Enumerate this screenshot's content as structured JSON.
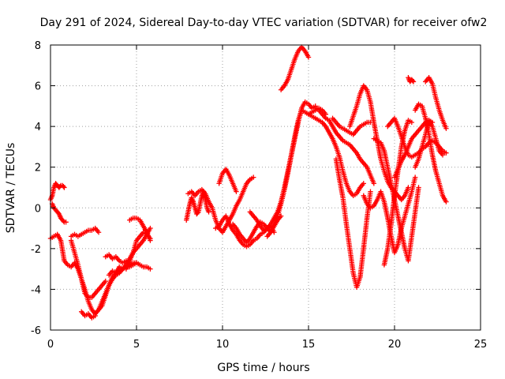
{
  "chart_data": {
    "type": "scatter",
    "title": "Day 291 of 2024, Sidereal Day-to-day VTEC variation (SDTVAR) for receiver ofw2",
    "xlabel": "GPS time / hours",
    "ylabel": "SDTVAR / TECUs",
    "xlim": [
      0,
      25
    ],
    "ylim": [
      -6,
      8
    ],
    "x_ticks": [
      "0",
      "5",
      "10",
      "15",
      "20",
      "25"
    ],
    "y_ticks": [
      "-6",
      "-4",
      "-2",
      "0",
      "2",
      "4",
      "6",
      "8"
    ],
    "grid": true,
    "legend": "none",
    "marker": "plus",
    "color": "#ff0000",
    "series": [
      {
        "x": [
          0.0,
          0.1,
          0.2,
          0.3,
          0.4,
          0.5,
          0.6,
          0.7,
          0.8
        ],
        "y": [
          0.4,
          0.6,
          1.0,
          1.2,
          1.1,
          1.0,
          1.1,
          1.1,
          1.0
        ]
      },
      {
        "x": [
          0.1,
          0.2,
          0.3,
          0.4,
          0.5,
          0.6,
          0.7,
          0.8,
          0.9
        ],
        "y": [
          0.2,
          0.0,
          -0.1,
          -0.2,
          -0.3,
          -0.5,
          -0.6,
          -0.7,
          -0.7
        ]
      },
      {
        "x": [
          0.0,
          0.2,
          0.4,
          0.6,
          0.8,
          1.0,
          1.2,
          1.4,
          1.6,
          1.8,
          2.0,
          2.2,
          2.4,
          2.6,
          2.8,
          3.0,
          3.2
        ],
        "y": [
          -1.5,
          -1.4,
          -1.3,
          -1.6,
          -2.6,
          -2.8,
          -2.9,
          -2.7,
          -3.0,
          -3.5,
          -4.2,
          -4.4,
          -4.4,
          -4.2,
          -4.0,
          -3.8,
          -3.6
        ]
      },
      {
        "x": [
          1.2,
          1.4,
          1.6,
          1.8,
          2.0,
          2.2,
          2.4,
          2.6,
          2.8
        ],
        "y": [
          -1.4,
          -1.3,
          -1.4,
          -1.3,
          -1.2,
          -1.1,
          -1.1,
          -1.0,
          -1.2
        ]
      },
      {
        "x": [
          1.2,
          1.4,
          1.6,
          1.8,
          2.0,
          2.2,
          2.4,
          2.6,
          2.8,
          3.0,
          3.2,
          3.4,
          3.6,
          3.8,
          4.0,
          4.2,
          4.4,
          4.6,
          4.8,
          5.0,
          5.2,
          5.4,
          5.6,
          5.8
        ],
        "y": [
          -1.6,
          -2.2,
          -2.8,
          -3.5,
          -4.0,
          -4.6,
          -5.0,
          -5.2,
          -5.0,
          -4.8,
          -4.3,
          -3.8,
          -3.5,
          -3.3,
          -3.2,
          -3.0,
          -2.9,
          -2.9,
          -2.8,
          -2.7,
          -2.8,
          -2.9,
          -2.9,
          -3.0
        ]
      },
      {
        "x": [
          1.8,
          2.0,
          2.2,
          2.4,
          2.6
        ],
        "y": [
          -5.1,
          -5.3,
          -5.2,
          -5.4,
          -5.3
        ]
      },
      {
        "x": [
          2.6,
          2.8,
          3.0,
          3.2,
          3.4,
          3.6,
          3.8,
          4.0,
          4.2,
          4.4,
          4.6,
          4.8,
          5.0
        ],
        "y": [
          -5.2,
          -5.0,
          -4.6,
          -4.2,
          -3.8,
          -3.4,
          -3.2,
          -3.1,
          -3.0,
          -2.9,
          -2.8,
          -2.7,
          -2.7
        ]
      },
      {
        "x": [
          3.2,
          3.4,
          3.6,
          3.8,
          4.0,
          4.2,
          4.4,
          4.6
        ],
        "y": [
          -2.4,
          -2.3,
          -2.5,
          -2.4,
          -2.6,
          -2.7,
          -2.6,
          -2.8
        ]
      },
      {
        "x": [
          3.4,
          3.6,
          3.8,
          4.0,
          4.2,
          4.4,
          4.6,
          4.8,
          5.0,
          5.2,
          5.4,
          5.6,
          5.8
        ],
        "y": [
          -3.3,
          -3.1,
          -3.2,
          -2.9,
          -3.0,
          -2.8,
          -2.5,
          -2.2,
          -2.0,
          -1.8,
          -1.6,
          -1.3,
          -1.0
        ]
      },
      {
        "x": [
          4.4,
          4.6,
          4.8,
          5.0,
          5.2,
          5.4,
          5.6,
          5.8
        ],
        "y": [
          -3.0,
          -2.6,
          -2.2,
          -1.6,
          -1.4,
          -1.2,
          -1.3,
          -1.5
        ]
      },
      {
        "x": [
          4.6,
          4.8,
          5.0,
          5.2,
          5.4,
          5.6,
          5.8
        ],
        "y": [
          -0.6,
          -0.5,
          -0.5,
          -0.6,
          -0.9,
          -1.2,
          -1.6
        ]
      },
      {
        "x": [
          7.9,
          8.0,
          8.1,
          8.2,
          8.3,
          8.4,
          8.5,
          8.6,
          8.7,
          8.8,
          8.9,
          9.0,
          9.1,
          9.2
        ],
        "y": [
          -0.6,
          -0.2,
          0.2,
          0.5,
          0.3,
          0.0,
          -0.3,
          -0.2,
          0.2,
          0.6,
          0.8,
          0.4,
          0.0,
          -0.2
        ]
      },
      {
        "x": [
          8.0,
          8.2,
          8.4,
          8.6,
          8.8,
          9.0,
          9.2,
          9.4,
          9.6,
          9.8,
          10.0,
          10.2,
          10.4,
          10.6,
          10.8,
          11.0,
          11.2,
          11.4,
          11.6,
          11.8
        ],
        "y": [
          0.7,
          0.8,
          0.6,
          0.8,
          0.9,
          0.7,
          0.3,
          0.0,
          -0.6,
          -1.0,
          -1.2,
          -0.9,
          -0.6,
          -0.3,
          0.1,
          0.4,
          0.8,
          1.2,
          1.4,
          1.5
        ]
      },
      {
        "x": [
          9.6,
          9.8,
          10.0,
          10.2,
          10.4,
          10.6,
          10.8,
          11.0,
          11.2,
          11.4,
          11.6,
          11.8,
          12.0,
          12.2,
          12.4,
          12.6,
          12.8,
          13.0
        ],
        "y": [
          -1.0,
          -0.9,
          -0.6,
          -0.4,
          -0.8,
          -1.1,
          -1.3,
          -1.6,
          -1.8,
          -1.9,
          -1.8,
          -1.6,
          -1.5,
          -1.3,
          -1.2,
          -1.0,
          -0.9,
          -1.2
        ]
      },
      {
        "x": [
          9.8,
          10.0,
          10.2,
          10.4,
          10.6,
          10.8
        ],
        "y": [
          1.2,
          1.7,
          1.9,
          1.6,
          1.2,
          0.8
        ]
      },
      {
        "x": [
          10.6,
          10.8,
          11.0,
          11.2,
          11.4,
          11.6,
          11.8,
          12.0,
          12.2,
          12.4,
          12.6,
          12.8,
          13.0,
          13.2,
          13.4
        ],
        "y": [
          -0.8,
          -1.0,
          -1.3,
          -1.5,
          -1.7,
          -1.5,
          -1.2,
          -0.9,
          -0.7,
          -0.8,
          -1.0,
          -1.2,
          -0.9,
          -0.6,
          -0.4
        ]
      },
      {
        "x": [
          11.6,
          11.8,
          12.0,
          12.2,
          12.4,
          12.6,
          12.8,
          13.0,
          13.2,
          13.4,
          13.6,
          13.8,
          14.0,
          14.2,
          14.4,
          14.6,
          14.8,
          15.0,
          15.2,
          15.4
        ],
        "y": [
          -0.2,
          -0.4,
          -0.6,
          -0.9,
          -1.1,
          -1.0,
          -0.8,
          -0.5,
          -0.2,
          0.3,
          1.0,
          1.8,
          2.6,
          3.4,
          4.2,
          4.9,
          5.2,
          5.1,
          4.9,
          5.0
        ]
      },
      {
        "x": [
          12.6,
          12.8,
          13.0,
          13.2,
          13.4,
          13.6,
          13.8,
          14.0,
          14.2,
          14.4,
          14.6,
          14.8,
          15.0,
          15.2,
          15.4,
          15.6,
          15.8,
          16.0
        ],
        "y": [
          -1.4,
          -1.2,
          -0.8,
          -0.4,
          0.2,
          0.9,
          1.7,
          2.6,
          3.5,
          4.3,
          4.8,
          4.7,
          4.6,
          4.7,
          4.8,
          4.9,
          4.8,
          4.6
        ]
      },
      {
        "x": [
          13.4,
          13.6,
          13.8,
          14.0,
          14.2,
          14.4,
          14.6,
          14.8,
          15.0
        ],
        "y": [
          5.8,
          6.0,
          6.3,
          6.8,
          7.3,
          7.7,
          7.9,
          7.7,
          7.4
        ]
      },
      {
        "x": [
          15.0,
          15.2,
          15.4,
          15.6,
          15.8,
          16.0,
          16.2,
          16.4,
          16.6,
          16.8,
          17.0,
          17.2,
          17.4,
          17.6,
          17.8,
          18.0,
          18.2
        ],
        "y": [
          4.6,
          4.5,
          4.4,
          4.3,
          4.2,
          4.0,
          3.7,
          3.4,
          3.0,
          2.5,
          1.8,
          1.2,
          0.8,
          0.6,
          0.7,
          1.0,
          1.2
        ]
      },
      {
        "x": [
          15.4,
          15.6,
          15.8,
          16.0,
          16.2,
          16.4,
          16.6,
          16.8,
          17.0,
          17.2,
          17.4,
          17.6,
          17.8,
          18.0,
          18.2,
          18.4,
          18.6,
          18.8
        ],
        "y": [
          4.9,
          4.8,
          4.6,
          4.4,
          4.3,
          4.0,
          3.7,
          3.5,
          3.3,
          3.2,
          3.1,
          2.9,
          2.7,
          2.4,
          2.2,
          2.0,
          1.6,
          1.2
        ]
      },
      {
        "x": [
          16.4,
          16.6,
          16.8,
          17.0,
          17.2,
          17.4,
          17.6,
          17.8,
          18.0,
          18.2,
          18.4,
          18.6
        ],
        "y": [
          4.4,
          4.2,
          4.0,
          3.9,
          3.8,
          3.7,
          3.6,
          3.8,
          4.0,
          4.1,
          4.2,
          4.2
        ]
      },
      {
        "x": [
          16.6,
          16.8,
          17.0,
          17.2,
          17.4,
          17.6,
          17.8,
          18.0,
          18.2,
          18.4,
          18.6
        ],
        "y": [
          2.4,
          1.4,
          0.5,
          -0.8,
          -2.0,
          -3.2,
          -3.9,
          -3.4,
          -2.0,
          -0.5,
          0.8
        ]
      },
      {
        "x": [
          17.4,
          17.6,
          17.8,
          18.0,
          18.2,
          18.4,
          18.6,
          18.8,
          19.0,
          19.2,
          19.4,
          19.6,
          19.8,
          20.0,
          20.2,
          20.4,
          20.6,
          20.8
        ],
        "y": [
          4.0,
          4.5,
          5.0,
          5.6,
          6.0,
          5.8,
          5.2,
          4.2,
          3.3,
          2.4,
          1.8,
          1.3,
          1.0,
          0.8,
          0.6,
          0.4,
          0.6,
          1.0
        ]
      },
      {
        "x": [
          18.2,
          18.4,
          18.6,
          18.8,
          19.0,
          19.2,
          19.4,
          19.6,
          19.8,
          20.0,
          20.2,
          20.4,
          20.6,
          20.8,
          21.0,
          21.2
        ],
        "y": [
          0.6,
          0.2,
          0.0,
          0.1,
          0.4,
          0.8,
          0.3,
          -0.5,
          -1.4,
          -2.2,
          -1.8,
          -1.0,
          -0.4,
          0.2,
          0.8,
          1.5
        ]
      },
      {
        "x": [
          18.8,
          19.0,
          19.2,
          19.4,
          19.6,
          19.8,
          20.0,
          20.2,
          20.4,
          20.6,
          20.8,
          21.0,
          21.2,
          21.4
        ],
        "y": [
          3.4,
          3.3,
          3.2,
          2.8,
          2.0,
          1.2,
          0.4,
          -0.4,
          -1.2,
          -2.0,
          -2.6,
          -1.4,
          -0.2,
          1.0
        ]
      },
      {
        "x": [
          19.4,
          19.6,
          19.8,
          20.0,
          20.2,
          20.4,
          20.6,
          20.8,
          21.0
        ],
        "y": [
          -2.8,
          -2.0,
          -0.8,
          0.6,
          1.8,
          3.0,
          3.8,
          4.3,
          4.2
        ]
      },
      {
        "x": [
          19.6,
          19.8,
          20.0,
          20.2,
          20.4,
          20.6,
          20.8,
          21.0,
          21.2,
          21.4,
          21.6,
          21.8,
          22.0,
          22.2,
          22.4,
          22.6,
          22.8,
          23.0
        ],
        "y": [
          4.0,
          4.2,
          4.4,
          4.0,
          3.5,
          3.0,
          2.6,
          2.5,
          2.6,
          2.7,
          2.9,
          3.0,
          3.2,
          3.3,
          3.2,
          3.0,
          2.8,
          2.7
        ]
      },
      {
        "x": [
          20.0,
          20.2,
          20.4,
          20.6,
          20.8,
          21.0,
          21.2,
          21.4,
          21.6,
          21.8,
          22.0,
          22.2
        ],
        "y": [
          1.5,
          1.9,
          2.3,
          2.6,
          3.0,
          3.4,
          3.6,
          3.8,
          4.0,
          4.2,
          4.3,
          4.2
        ]
      },
      {
        "x": [
          20.8,
          20.9,
          21.0,
          21.1
        ],
        "y": [
          6.4,
          6.2,
          6.3,
          6.2
        ]
      },
      {
        "x": [
          21.2,
          21.4,
          21.6,
          21.8,
          22.0,
          22.2,
          22.4,
          22.6,
          22.8
        ],
        "y": [
          2.0,
          2.4,
          3.0,
          3.6,
          4.3,
          4.0,
          3.4,
          2.8,
          2.6
        ]
      },
      {
        "x": [
          21.2,
          21.4,
          21.6,
          21.8,
          22.0,
          22.2,
          22.4,
          22.6,
          22.8,
          23.0
        ],
        "y": [
          4.8,
          5.1,
          5.0,
          4.4,
          3.6,
          2.6,
          1.8,
          1.2,
          0.6,
          0.3
        ]
      },
      {
        "x": [
          21.8,
          22.0,
          22.2,
          22.4,
          22.6,
          22.8,
          23.0
        ],
        "y": [
          6.2,
          6.4,
          6.1,
          5.4,
          4.8,
          4.3,
          3.9
        ]
      }
    ]
  }
}
